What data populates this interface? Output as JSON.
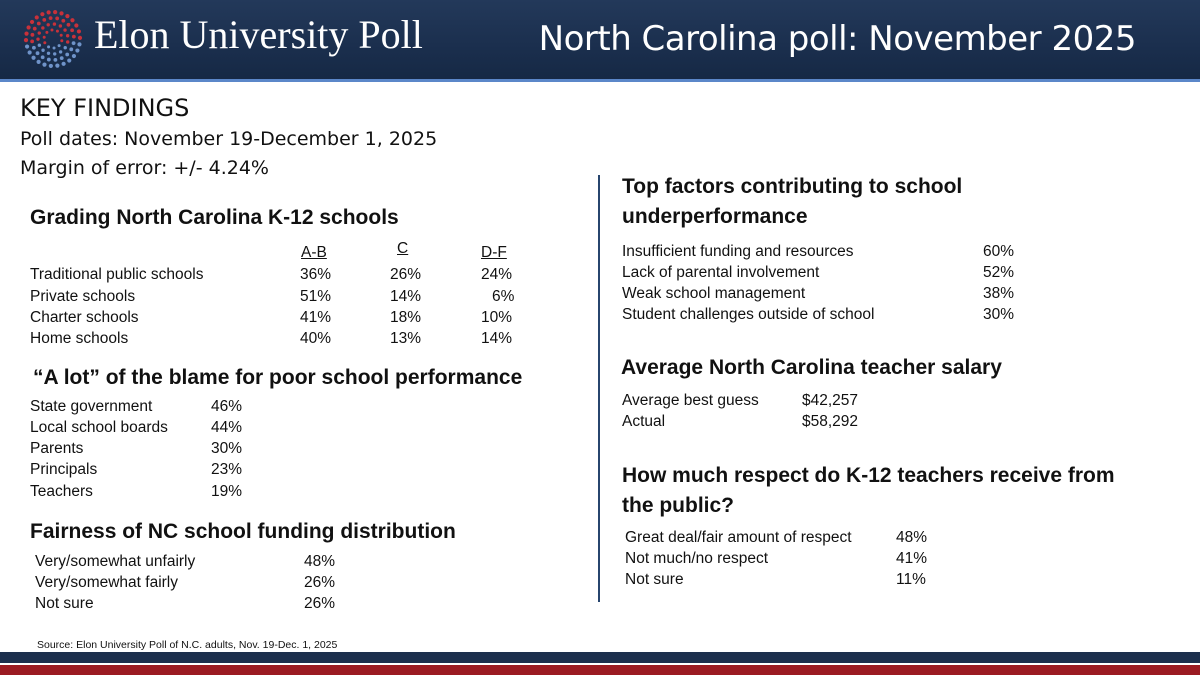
{
  "header": {
    "logo_text": "Elon University Poll",
    "title": "North Carolina poll: November 2025"
  },
  "key_findings": {
    "heading": "KEY FINDINGS",
    "poll_dates": "Poll dates: November 19-December 1, 2025",
    "margin": "Margin of error: +/- 4.24%"
  },
  "grading": {
    "title": "Grading North Carolina K-12 schools",
    "columns": [
      "A-B",
      "C",
      "D-F"
    ],
    "rows": [
      {
        "label": "Traditional public schools",
        "ab": "36%",
        "c": "26%",
        "df": "24%"
      },
      {
        "label": "Private schools",
        "ab": "51%",
        "c": "14%",
        "df": "6%"
      },
      {
        "label": "Charter schools",
        "ab": "41%",
        "c": "18%",
        "df": "10%"
      },
      {
        "label": "Home schools",
        "ab": "40%",
        "c": "13%",
        "df": "14%"
      }
    ]
  },
  "blame": {
    "title": "“A lot” of the blame for poor school performance",
    "rows": [
      {
        "label": "State government",
        "value": "46%"
      },
      {
        "label": "Local school boards",
        "value": "44%"
      },
      {
        "label": "Parents",
        "value": "30%"
      },
      {
        "label": "Principals",
        "value": "23%"
      },
      {
        "label": "Teachers",
        "value": "19%"
      }
    ]
  },
  "fairness": {
    "title": "Fairness of NC school funding distribution",
    "rows": [
      {
        "label": "Very/somewhat unfairly",
        "value": "48%"
      },
      {
        "label": "Very/somewhat fairly",
        "value": "26%"
      },
      {
        "label": "Not sure",
        "value": "26%"
      }
    ]
  },
  "factors": {
    "title": "Top factors contributing to school underperformance",
    "rows": [
      {
        "label": "Insufficient funding and resources",
        "value": "60%"
      },
      {
        "label": "Lack of parental involvement",
        "value": "52%"
      },
      {
        "label": "Weak school management",
        "value": "38%"
      },
      {
        "label": "Student challenges outside of school",
        "value": "30%"
      }
    ]
  },
  "salary": {
    "title": "Average North Carolina teacher salary",
    "rows": [
      {
        "label": "Average best guess",
        "value": "$42,257"
      },
      {
        "label": "Actual",
        "value": "$58,292"
      }
    ]
  },
  "respect": {
    "title": "How much respect do K-12 teachers receive from the public?",
    "rows": [
      {
        "label": "Great deal/fair amount of respect",
        "value": "48%"
      },
      {
        "label": "Not much/no respect",
        "value": "41%"
      },
      {
        "label": "Not sure",
        "value": "11%"
      }
    ]
  },
  "source": "Source: Elon University Poll of N.C. adults, Nov. 19-Dec. 1, 2025",
  "colors": {
    "header_navy": "#1b2f4e",
    "divider": "#27456e",
    "footer_red": "#9b1b22",
    "logo_red": "#c8313a",
    "logo_blue": "#6f93c9"
  }
}
